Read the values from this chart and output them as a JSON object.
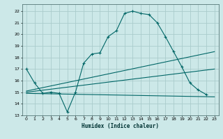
{
  "xlabel": "Humidex (Indice chaleur)",
  "bg_color": "#cce8e8",
  "grid_color": "#aacccc",
  "line_color": "#006666",
  "xlim": [
    -0.5,
    23.5
  ],
  "ylim": [
    13.0,
    22.6
  ],
  "yticks": [
    13,
    14,
    15,
    16,
    17,
    18,
    19,
    20,
    21,
    22
  ],
  "xticks": [
    0,
    1,
    2,
    3,
    4,
    5,
    6,
    7,
    8,
    9,
    10,
    11,
    12,
    13,
    14,
    15,
    16,
    17,
    18,
    19,
    20,
    21,
    22,
    23
  ],
  "line1_x": [
    0,
    1,
    2,
    3,
    4,
    5,
    6,
    7,
    8,
    9,
    10,
    11,
    12,
    13,
    14,
    15,
    16,
    17,
    18,
    19,
    20,
    21,
    22
  ],
  "line1_y": [
    17.0,
    15.8,
    14.9,
    15.0,
    14.9,
    13.3,
    15.0,
    17.5,
    18.3,
    18.4,
    19.8,
    20.3,
    21.8,
    22.0,
    21.8,
    21.7,
    21.0,
    19.8,
    18.5,
    17.2,
    15.8,
    15.2,
    14.8
  ],
  "line2_x": [
    0,
    23
  ],
  "line2_y": [
    14.9,
    14.6
  ],
  "line3_x": [
    0,
    23
  ],
  "line3_y": [
    15.1,
    18.5
  ],
  "line4_x": [
    0,
    23
  ],
  "line4_y": [
    15.0,
    17.0
  ]
}
